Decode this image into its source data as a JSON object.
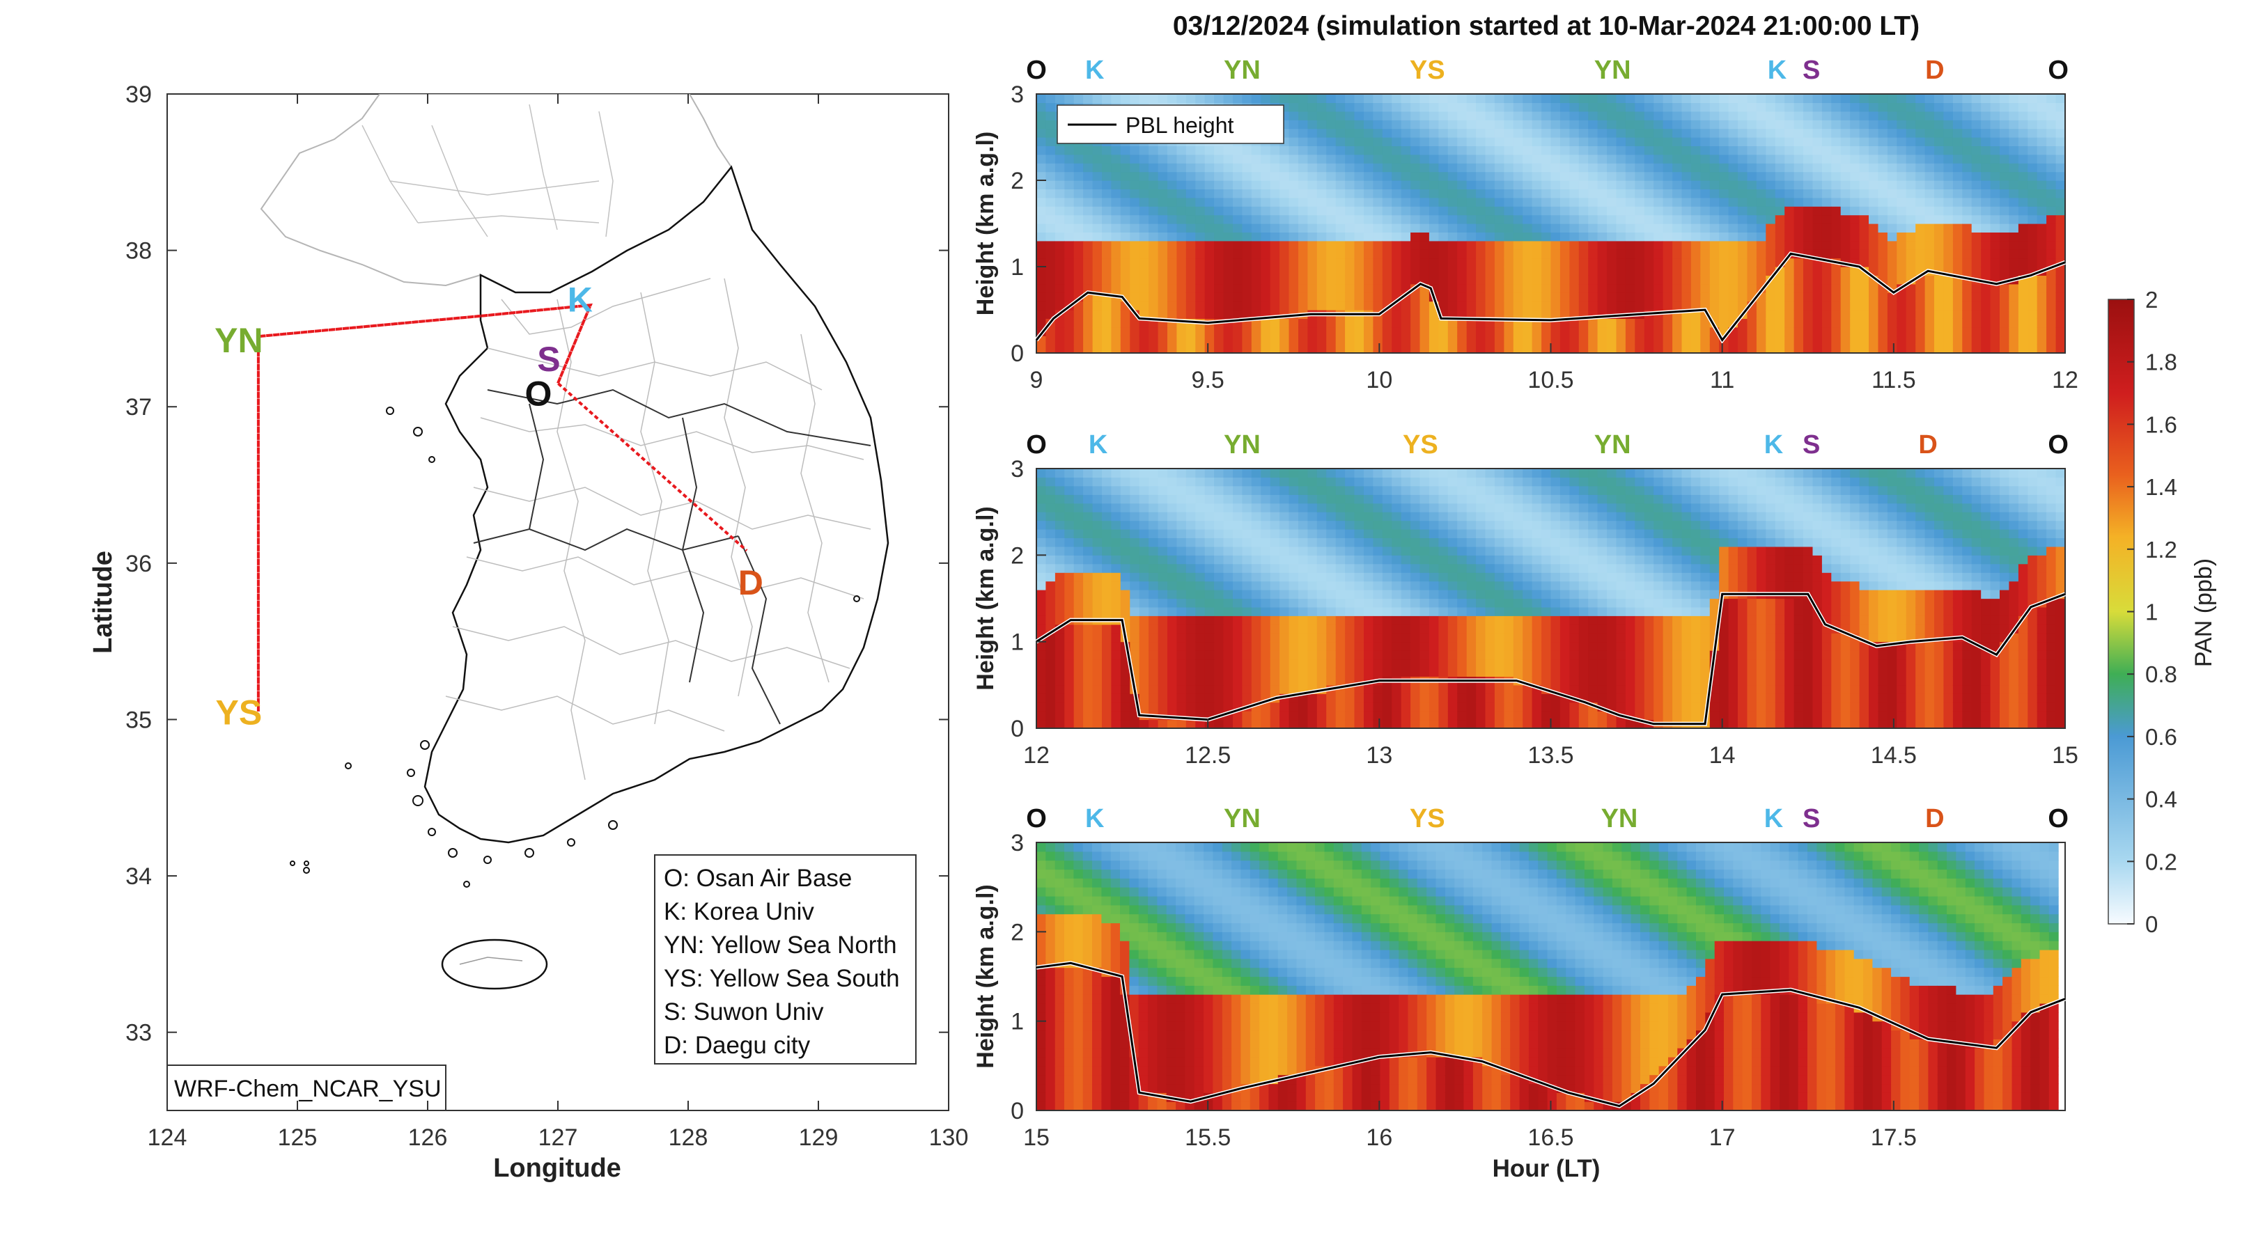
{
  "title": "03/12/2024 (simulation started at 10-Mar-2024 21:00:00 LT)",
  "colors": {
    "O": "#111111",
    "K": "#4db8e8",
    "YN": "#77ac30",
    "YS": "#edb120",
    "S": "#7e2f8e",
    "D": "#d95319",
    "track": "#e8191e",
    "pbl": "#000000",
    "cmap": [
      "#f7fbff",
      "#a9d8f0",
      "#4b9ad4",
      "#3fae55",
      "#d8dc3a",
      "#f4b126",
      "#e9601e",
      "#cf1e1e",
      "#9b1010"
    ]
  },
  "map": {
    "type": "map",
    "xlabel": "Longitude",
    "ylabel": "Latitude",
    "xlim": [
      124,
      130
    ],
    "ylim": [
      32.5,
      39
    ],
    "xticks": [
      "124",
      "125",
      "126",
      "127",
      "128",
      "129",
      "130"
    ],
    "yticks": [
      "33",
      "34",
      "35",
      "36",
      "37",
      "38",
      "39"
    ],
    "model_label": "WRF-Chem_NCAR_YSU",
    "sites": [
      {
        "code": "O",
        "lon": 126.85,
        "lat": 37.08
      },
      {
        "code": "K",
        "lon": 127.17,
        "lat": 37.68
      },
      {
        "code": "S",
        "lon": 126.93,
        "lat": 37.3
      },
      {
        "code": "YN",
        "lon": 124.55,
        "lat": 37.42
      },
      {
        "code": "YS",
        "lon": 124.55,
        "lat": 35.04
      },
      {
        "code": "D",
        "lon": 128.48,
        "lat": 35.87
      }
    ],
    "flight_track": [
      [
        127.0,
        37.15
      ],
      [
        127.25,
        37.65
      ],
      [
        126.4,
        37.58
      ],
      [
        124.7,
        37.45
      ],
      [
        124.7,
        35.05
      ],
      [
        124.7,
        37.45
      ],
      [
        126.4,
        37.58
      ],
      [
        127.25,
        37.65
      ],
      [
        127.0,
        37.15
      ],
      [
        128.45,
        36.08
      ]
    ],
    "legend": [
      "O: Osan Air Base",
      "K: Korea Univ",
      "YN: Yellow Sea North",
      "YS: Yellow Sea South",
      "S: Suwon Univ",
      "D: Daegu city"
    ]
  },
  "chart_data": [
    {
      "type": "heatmap",
      "xlabel": "",
      "ylabel": "Height (km a.g.l)",
      "xlim": [
        9,
        12
      ],
      "ylim": [
        0,
        3
      ],
      "xticks": [
        "9",
        "9.5",
        "10",
        "10.5",
        "11",
        "11.5",
        "12"
      ],
      "yticks": [
        "0",
        "1",
        "2",
        "3"
      ],
      "legend": "PBL height",
      "site_labels": [
        {
          "code": "O",
          "x": 9.0
        },
        {
          "code": "K",
          "x": 9.17
        },
        {
          "code": "YN",
          "x": 9.6
        },
        {
          "code": "YS",
          "x": 10.14
        },
        {
          "code": "YN",
          "x": 10.68
        },
        {
          "code": "K",
          "x": 11.16
        },
        {
          "code": "S",
          "x": 11.26
        },
        {
          "code": "D",
          "x": 11.62
        },
        {
          "code": "O",
          "x": 11.98
        }
      ],
      "pbl": {
        "x": [
          9.0,
          9.05,
          9.15,
          9.25,
          9.3,
          9.5,
          9.8,
          10.0,
          10.12,
          10.15,
          10.18,
          10.5,
          10.95,
          11.0,
          11.2,
          11.4,
          11.5,
          11.6,
          11.8,
          11.9,
          12.0
        ],
        "y": [
          0.15,
          0.4,
          0.7,
          0.65,
          0.4,
          0.35,
          0.45,
          0.45,
          0.8,
          0.75,
          0.4,
          0.38,
          0.5,
          0.15,
          1.15,
          1.0,
          0.7,
          0.95,
          0.8,
          0.9,
          1.05
        ]
      }
    },
    {
      "type": "heatmap",
      "xlabel": "",
      "ylabel": "Height (km a.g.l)",
      "xlim": [
        12,
        15
      ],
      "ylim": [
        0,
        3
      ],
      "xticks": [
        "12",
        "12.5",
        "13",
        "13.5",
        "14",
        "14.5",
        "15"
      ],
      "yticks": [
        "0",
        "1",
        "2",
        "3"
      ],
      "site_labels": [
        {
          "code": "O",
          "x": 12.0
        },
        {
          "code": "K",
          "x": 12.18
        },
        {
          "code": "YN",
          "x": 12.6
        },
        {
          "code": "YS",
          "x": 13.12
        },
        {
          "code": "YN",
          "x": 13.68
        },
        {
          "code": "K",
          "x": 14.15
        },
        {
          "code": "S",
          "x": 14.26
        },
        {
          "code": "D",
          "x": 14.6
        },
        {
          "code": "O",
          "x": 14.98
        }
      ],
      "pbl": {
        "x": [
          12.0,
          12.1,
          12.25,
          12.3,
          12.5,
          12.7,
          13.0,
          13.2,
          13.4,
          13.6,
          13.7,
          13.8,
          13.95,
          14.0,
          14.25,
          14.3,
          14.45,
          14.55,
          14.7,
          14.8,
          14.9,
          15.0
        ],
        "y": [
          1.0,
          1.25,
          1.25,
          0.15,
          0.1,
          0.35,
          0.55,
          0.55,
          0.55,
          0.3,
          0.15,
          0.05,
          0.05,
          1.55,
          1.55,
          1.2,
          0.95,
          1.0,
          1.05,
          0.85,
          1.4,
          1.55
        ]
      }
    },
    {
      "type": "heatmap",
      "xlabel": "Hour (LT)",
      "ylabel": "Height (km a.g.l)",
      "xlim": [
        15,
        18
      ],
      "ylim": [
        0,
        3
      ],
      "xticks": [
        "15",
        "15.5",
        "16",
        "16.5",
        "17",
        "17.5"
      ],
      "yticks": [
        "0",
        "1",
        "2",
        "3"
      ],
      "site_labels": [
        {
          "code": "O",
          "x": 15.0
        },
        {
          "code": "K",
          "x": 15.17
        },
        {
          "code": "YN",
          "x": 15.6
        },
        {
          "code": "YS",
          "x": 16.14
        },
        {
          "code": "YN",
          "x": 16.7
        },
        {
          "code": "K",
          "x": 17.15
        },
        {
          "code": "S",
          "x": 17.26
        },
        {
          "code": "D",
          "x": 17.62
        },
        {
          "code": "O",
          "x": 17.98
        }
      ],
      "pbl": {
        "x": [
          15.0,
          15.1,
          15.25,
          15.3,
          15.45,
          15.6,
          16.0,
          16.15,
          16.3,
          16.55,
          16.7,
          16.8,
          16.95,
          17.0,
          17.2,
          17.4,
          17.6,
          17.8,
          17.9,
          18.0
        ],
        "y": [
          1.6,
          1.65,
          1.5,
          0.2,
          0.1,
          0.25,
          0.6,
          0.65,
          0.55,
          0.2,
          0.05,
          0.3,
          0.9,
          1.3,
          1.35,
          1.15,
          0.8,
          0.7,
          1.1,
          1.25
        ]
      }
    }
  ],
  "colorbar": {
    "label": "PAN (ppb)",
    "ticks": [
      "0",
      "0.2",
      "0.4",
      "0.6",
      "0.8",
      "1",
      "1.2",
      "1.4",
      "1.6",
      "1.8",
      "2"
    ],
    "range": [
      0,
      2
    ]
  }
}
